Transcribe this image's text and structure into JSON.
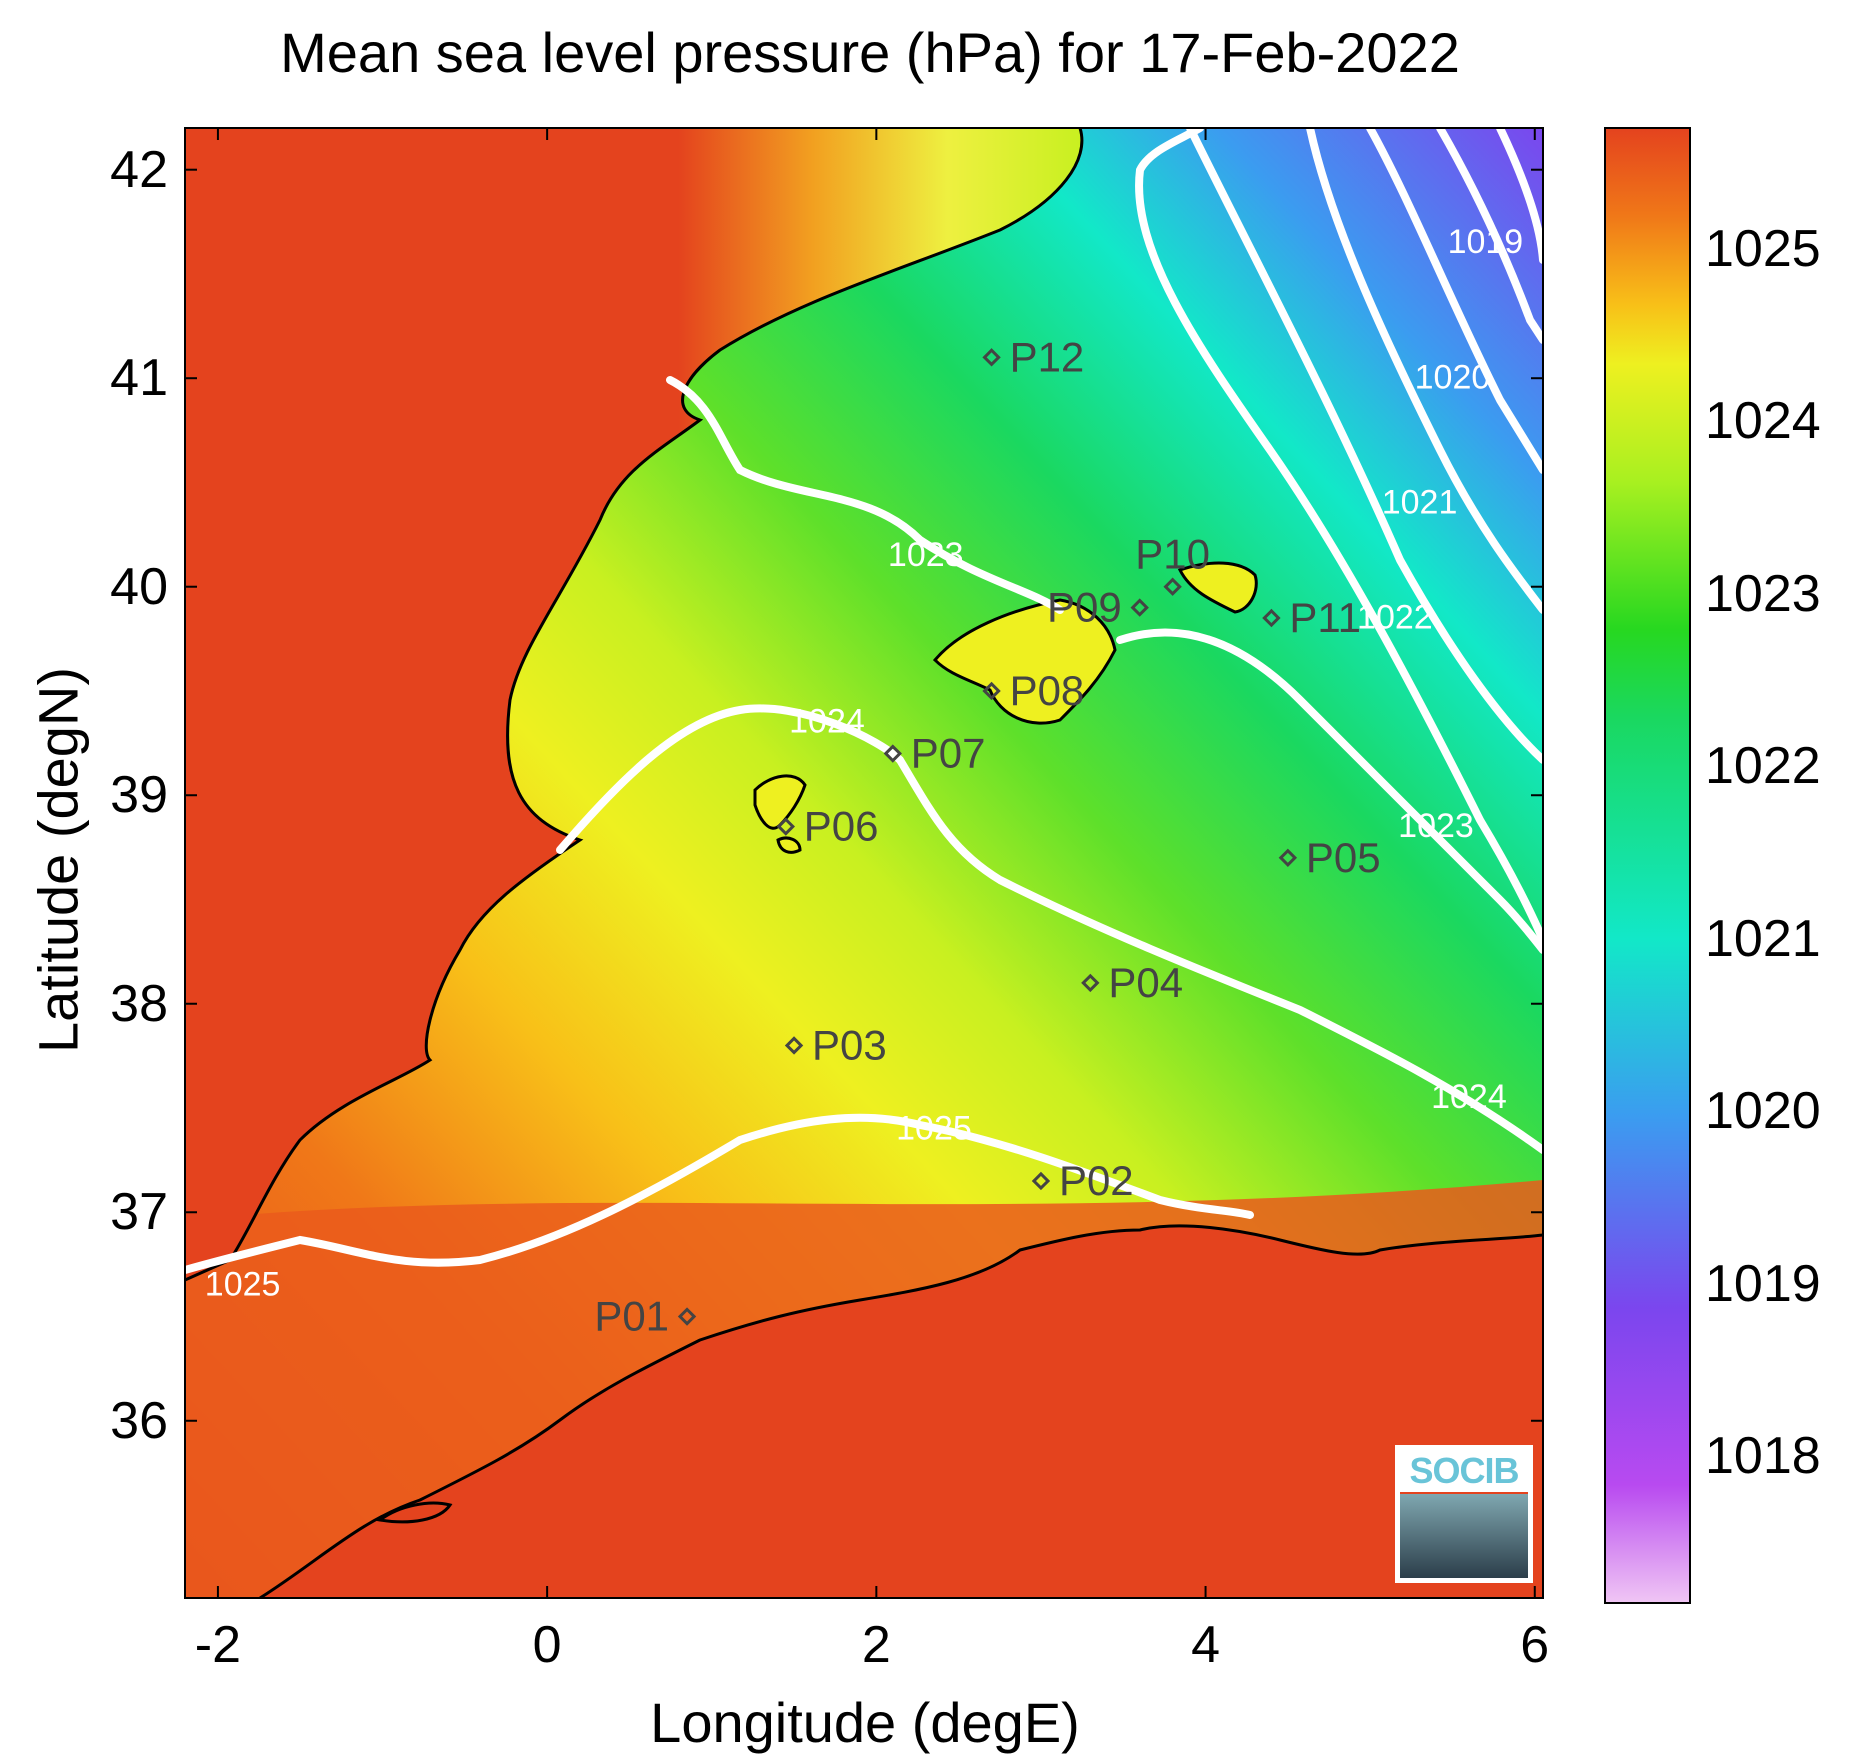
{
  "title": "Mean sea level pressure (hPa) for 17-Feb-2022",
  "xlabel": "Longitude (degE)",
  "ylabel": "Latitude (degN)",
  "x_ticks": [
    "-2",
    "0",
    "2",
    "4",
    "6"
  ],
  "y_ticks": [
    "42",
    "41",
    "40",
    "39",
    "38",
    "37",
    "36"
  ],
  "colorbar_ticks": [
    "1025",
    "1024",
    "1023",
    "1022",
    "1021",
    "1020",
    "1019",
    "1018"
  ],
  "xlim": [
    -2.2,
    6.05
  ],
  "ylim": [
    35.15,
    42.2
  ],
  "colorbar_range": [
    1017.15,
    1025.7
  ],
  "colorbar_colors": [
    "#e8b4f0",
    "#b84af0",
    "#7b46ee",
    "#3b9cf0",
    "#12e8c8",
    "#1ad860",
    "#27d820",
    "#a8f020",
    "#eef020",
    "#f8c018",
    "#f07818",
    "#e4431e"
  ],
  "land_color": "#e4431e",
  "coast_color": "#000000",
  "contour_color": "#ffffff",
  "contour_labels": [
    {
      "text": "1019",
      "lon": 5.7,
      "lat": 41.6
    },
    {
      "text": "1020",
      "lon": 5.5,
      "lat": 40.95
    },
    {
      "text": "1021",
      "lon": 5.3,
      "lat": 40.35
    },
    {
      "text": "1022",
      "lon": 5.15,
      "lat": 39.8
    },
    {
      "text": "1023",
      "lon": 2.3,
      "lat": 40.1
    },
    {
      "text": "1023",
      "lon": 5.4,
      "lat": 38.8
    },
    {
      "text": "1024",
      "lon": 1.7,
      "lat": 39.3
    },
    {
      "text": "1024",
      "lon": 5.6,
      "lat": 37.5
    },
    {
      "text": "1025",
      "lon": 2.35,
      "lat": 37.35
    },
    {
      "text": "1025",
      "lon": -1.85,
      "lat": 36.6
    }
  ],
  "points": [
    {
      "label": "P01",
      "lon": 0.85,
      "lat": 36.5,
      "side": "left"
    },
    {
      "label": "P02",
      "lon": 3.0,
      "lat": 37.15,
      "side": "right"
    },
    {
      "label": "P03",
      "lon": 1.5,
      "lat": 37.8,
      "side": "right"
    },
    {
      "label": "P04",
      "lon": 3.3,
      "lat": 38.1,
      "side": "right"
    },
    {
      "label": "P05",
      "lon": 4.5,
      "lat": 38.7,
      "side": "right"
    },
    {
      "label": "P06",
      "lon": 1.45,
      "lat": 38.85,
      "side": "right"
    },
    {
      "label": "P07",
      "lon": 2.1,
      "lat": 39.2,
      "side": "right"
    },
    {
      "label": "P08",
      "lon": 2.7,
      "lat": 39.5,
      "side": "right"
    },
    {
      "label": "P09",
      "lon": 3.6,
      "lat": 39.9,
      "side": "left"
    },
    {
      "label": "P10",
      "lon": 3.8,
      "lat": 40.0,
      "side": "above"
    },
    {
      "label": "P11",
      "lon": 4.4,
      "lat": 39.85,
      "side": "right"
    },
    {
      "label": "P12",
      "lon": 2.7,
      "lat": 41.1,
      "side": "right"
    }
  ],
  "logo_text": "SOCIB"
}
